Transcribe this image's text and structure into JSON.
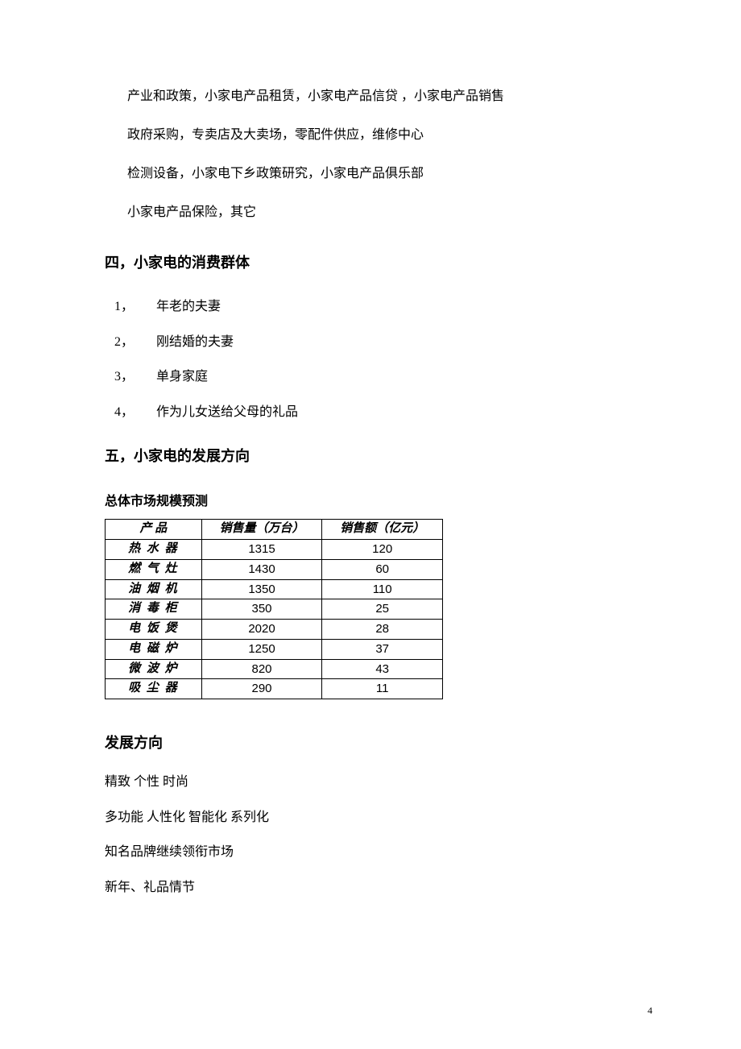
{
  "intro": {
    "line1": "产业和政策，小家电产品租赁，小家电产品信贷 ，小家电产品销售",
    "line2": "政府采购，专卖店及大卖场，零配件供应，维修中心",
    "line3": "检测设备，小家电下乡政策研究，小家电产品俱乐部",
    "line4": "小家电产品保险，其它"
  },
  "section4": {
    "heading": "四，小家电的消费群体",
    "items": [
      {
        "num": "1，",
        "text": "年老的夫妻"
      },
      {
        "num": "2，",
        "text": "刚结婚的夫妻"
      },
      {
        "num": "3，",
        "text": "单身家庭"
      },
      {
        "num": "4，",
        "text": "作为儿女送给父母的礼品"
      }
    ]
  },
  "section5": {
    "heading": "五，小家电的发展方向",
    "forecast_heading": "总体市场规模预测",
    "table": {
      "columns": [
        "产 品",
        "销售量（万台）",
        "销售额（亿元）"
      ],
      "rows": [
        [
          "热 水 器",
          "1315",
          "120"
        ],
        [
          "燃 气 灶",
          "1430",
          "60"
        ],
        [
          "油 烟 机",
          "1350",
          "110"
        ],
        [
          "消 毒 柜",
          "350",
          "25"
        ],
        [
          "电 饭 煲",
          "2020",
          "28"
        ],
        [
          "电 磁 炉",
          "1250",
          "37"
        ],
        [
          "微 波 炉",
          "820",
          "43"
        ],
        [
          "吸 尘 器",
          "290",
          "11"
        ]
      ]
    },
    "direction_heading": "发展方向",
    "directions": [
      "精致  个性    时尚",
      "多功能    人性化    智能化    系列化",
      "知名品牌继续领衔市场",
      "新年、礼品情节"
    ]
  },
  "page_number": "4"
}
